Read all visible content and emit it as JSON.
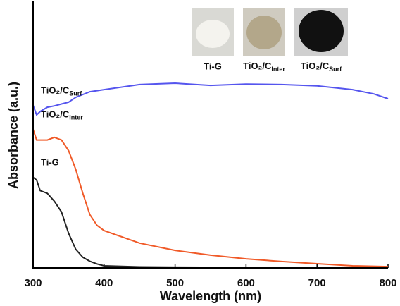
{
  "chart_data": {
    "type": "line",
    "x_label": "Wavelength (nm)",
    "y_label": "Absorbance (a.u.)",
    "xlim": [
      300,
      800
    ],
    "xticks": [
      300,
      400,
      500,
      600,
      700,
      800
    ],
    "ylim": [
      0,
      1
    ],
    "series": [
      {
        "name": "Ti-G",
        "color": "#222222",
        "x": [
          300,
          305,
          310,
          320,
          330,
          340,
          350,
          360,
          370,
          380,
          390,
          400,
          450,
          500,
          600,
          700,
          800
        ],
        "values": [
          0.34,
          0.33,
          0.29,
          0.28,
          0.25,
          0.21,
          0.13,
          0.07,
          0.04,
          0.025,
          0.015,
          0.008,
          0.004,
          0.003,
          0.002,
          0.002,
          0.001
        ]
      },
      {
        "name": "TiO₂/C",
        "name_subscript": "Inter",
        "color": "#f05a28",
        "x": [
          300,
          305,
          310,
          320,
          330,
          340,
          350,
          360,
          370,
          380,
          390,
          400,
          450,
          500,
          550,
          600,
          650,
          700,
          750,
          800
        ],
        "values": [
          0.52,
          0.48,
          0.48,
          0.48,
          0.49,
          0.48,
          0.44,
          0.37,
          0.28,
          0.2,
          0.16,
          0.14,
          0.093,
          0.066,
          0.048,
          0.034,
          0.024,
          0.016,
          0.008,
          0.005
        ]
      },
      {
        "name": "TiO₂/C",
        "name_subscript": "Surf",
        "color": "#5555ee",
        "x": [
          300,
          305,
          310,
          320,
          330,
          340,
          350,
          360,
          380,
          400,
          450,
          500,
          550,
          600,
          650,
          700,
          750,
          780,
          800
        ],
        "values": [
          0.61,
          0.574,
          0.587,
          0.603,
          0.608,
          0.615,
          0.622,
          0.64,
          0.661,
          0.669,
          0.688,
          0.693,
          0.685,
          0.69,
          0.688,
          0.683,
          0.669,
          0.653,
          0.635
        ]
      }
    ]
  },
  "photos": [
    {
      "label": "Ti-G"
    },
    {
      "label": "TiO₂/C",
      "label_subscript": "Inter"
    },
    {
      "label": "TiO₂/C",
      "label_subscript": "Surf"
    }
  ]
}
